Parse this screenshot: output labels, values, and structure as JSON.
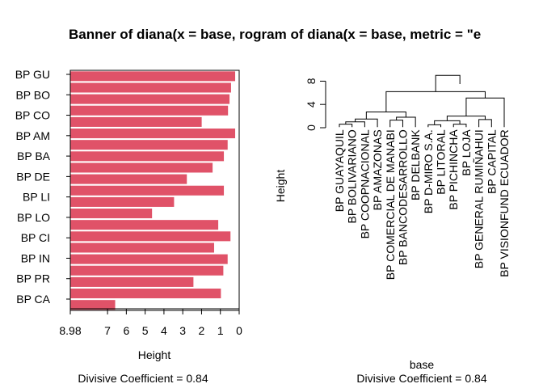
{
  "title": "Banner of  diana(x = base, rogram of  diana(x = base, metric = \"e",
  "chart_data": [
    {
      "type": "bar",
      "orientation": "horizontal",
      "xlabel": "Height",
      "xlim_reversed": [
        8.98,
        0
      ],
      "x_ticks": [
        "8.98",
        "7",
        "6",
        "5",
        "4",
        "3",
        "2",
        "1",
        "0"
      ],
      "x_tick_values": [
        8.98,
        7,
        6,
        5,
        4,
        3,
        2,
        1,
        0
      ],
      "y_tick_labels": [
        "BP GU",
        "BP BO",
        "BP CO",
        "BP AM",
        "BP BA",
        "BP DE",
        "BP LI",
        "BP LO",
        "BP CI",
        "BP IN",
        "BP PR",
        "BP CA"
      ],
      "bar_color": "#E05268",
      "values": [
        0.2,
        0.42,
        0.5,
        0.58,
        1.98,
        0.2,
        0.6,
        0.8,
        1.4,
        2.77,
        0.8,
        3.45,
        4.62,
        1.1,
        0.45,
        1.32,
        0.6,
        0.83,
        2.42,
        0.96,
        6.58
      ],
      "footer": "Divisive Coefficient =  0.84"
    },
    {
      "type": "dendrogram",
      "ylabel": "Height",
      "xlabel": "base",
      "ylim": [
        0,
        8.98
      ],
      "y_ticks": [
        "0",
        "4",
        "8"
      ],
      "y_tick_values": [
        0,
        4,
        8
      ],
      "leaves": [
        "BP GUAYAQUIL",
        "BP BOLIVARIANO",
        "BP COOPNACIONAL",
        "BP AMAZONAS",
        "BP COMERCIAL DE MANABI",
        "BP BANCODESARROLLO",
        "BP DELBANK",
        "BP D-MIRO S.A.",
        "BP LITORAL",
        "BP PICHINCHA",
        "BP LOJA",
        "BP GENERAL RUMIÑAHUI",
        "BP CAPITAL",
        "BP VISIONFUND ECUADOR"
      ],
      "footer": "Divisive Coefficient =  0.84"
    }
  ]
}
